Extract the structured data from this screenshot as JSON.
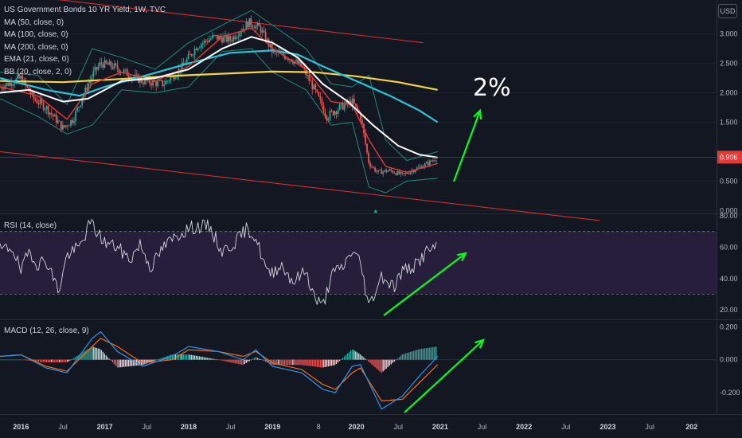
{
  "header": {
    "title": "US Government Bonds 10 YR Yield, 1W, TVC",
    "currency": "USD"
  },
  "indicators": {
    "ma50": "MA (50, close, 0)",
    "ma100": "MA (100, close, 0)",
    "ma200": "MA (200, close, 0)",
    "ema21": "EMA (21, close, 0)",
    "bb": "BB (20, close, 2, 0)",
    "rsi": "RSI (14, close)",
    "macd": "MACD (12, 26, close, 9)"
  },
  "annotation": {
    "text": "2%"
  },
  "colors": {
    "background": "#131722",
    "up": "#26a69a",
    "down": "#ef5350",
    "ma50": "#ffffff",
    "ma100": "#26c6da",
    "ma200": "#f5d442",
    "ema21": "#e53935",
    "bb": "#1d8a7a",
    "rsi_band": "#2a2040",
    "rsi_line": "#d1d4dc",
    "macd": "#2196f3",
    "signal": "#ff6d00",
    "arrow": "#00ff1a",
    "trendline": "#d32f2f",
    "price_tag": "#e53935"
  },
  "chart_data": [
    {
      "type": "candlestick",
      "title": "US Government Bonds 10 YR Yield, 1W, TVC",
      "x_tick_labels": [
        "2016",
        "Jul",
        "2017",
        "Jul",
        "2018",
        "Jul",
        "2019",
        "8",
        "2020",
        "Jul",
        "2021",
        "Jul",
        "2022",
        "Jul",
        "2023",
        "Jul",
        "202"
      ],
      "y_tick_labels": [
        "3.000",
        "2.500",
        "2.000",
        "1.500",
        "0.906",
        "0.500",
        "0.000"
      ],
      "ylim": [
        -0.05,
        3.55
      ],
      "last_price": 0.906,
      "ohlc_x_start": 2015.75,
      "ohlc_x_step": 0.0192,
      "close_path": [
        [
          2015.75,
          2.1
        ],
        [
          2016.0,
          2.25
        ],
        [
          2016.15,
          1.9
        ],
        [
          2016.3,
          1.75
        ],
        [
          2016.5,
          1.4
        ],
        [
          2016.62,
          1.55
        ],
        [
          2016.85,
          2.3
        ],
        [
          2016.95,
          2.5
        ],
        [
          2017.1,
          2.45
        ],
        [
          2017.3,
          2.3
        ],
        [
          2017.45,
          2.2
        ],
        [
          2017.7,
          2.15
        ],
        [
          2017.9,
          2.4
        ],
        [
          2018.1,
          2.8
        ],
        [
          2018.3,
          2.95
        ],
        [
          2018.5,
          2.9
        ],
        [
          2018.72,
          3.2
        ],
        [
          2018.85,
          3.1
        ],
        [
          2019.0,
          2.7
        ],
        [
          2019.2,
          2.6
        ],
        [
          2019.35,
          2.45
        ],
        [
          2019.5,
          2.05
        ],
        [
          2019.65,
          1.6
        ],
        [
          2019.8,
          1.75
        ],
        [
          2019.95,
          1.85
        ],
        [
          2020.05,
          1.6
        ],
        [
          2020.15,
          0.8
        ],
        [
          2020.25,
          0.65
        ],
        [
          2020.4,
          0.68
        ],
        [
          2020.55,
          0.6
        ],
        [
          2020.7,
          0.7
        ],
        [
          2020.85,
          0.8
        ],
        [
          2020.97,
          0.906
        ]
      ],
      "ma50": [
        [
          2015.75,
          2.0
        ],
        [
          2016.1,
          2.05
        ],
        [
          2016.5,
          1.85
        ],
        [
          2016.8,
          1.9
        ],
        [
          2017.2,
          2.2
        ],
        [
          2017.6,
          2.25
        ],
        [
          2018.0,
          2.4
        ],
        [
          2018.4,
          2.75
        ],
        [
          2018.75,
          2.95
        ],
        [
          2019.0,
          2.85
        ],
        [
          2019.3,
          2.6
        ],
        [
          2019.6,
          2.15
        ],
        [
          2019.9,
          1.85
        ],
        [
          2020.2,
          1.45
        ],
        [
          2020.5,
          1.1
        ],
        [
          2020.75,
          0.95
        ],
        [
          2020.97,
          0.9
        ]
      ],
      "ma100": [
        [
          2015.75,
          2.25
        ],
        [
          2016.3,
          2.05
        ],
        [
          2016.7,
          1.95
        ],
        [
          2017.0,
          2.1
        ],
        [
          2017.5,
          2.3
        ],
        [
          2018.0,
          2.5
        ],
        [
          2018.5,
          2.68
        ],
        [
          2019.0,
          2.72
        ],
        [
          2019.3,
          2.65
        ],
        [
          2019.6,
          2.45
        ],
        [
          2020.0,
          2.2
        ],
        [
          2020.4,
          1.95
        ],
        [
          2020.75,
          1.7
        ],
        [
          2020.97,
          1.5
        ]
      ],
      "ma200": [
        [
          2015.75,
          2.2
        ],
        [
          2016.5,
          2.18
        ],
        [
          2017.0,
          2.22
        ],
        [
          2017.5,
          2.26
        ],
        [
          2018.0,
          2.3
        ],
        [
          2018.5,
          2.33
        ],
        [
          2019.0,
          2.36
        ],
        [
          2019.5,
          2.35
        ],
        [
          2020.0,
          2.28
        ],
        [
          2020.5,
          2.18
        ],
        [
          2020.97,
          2.05
        ]
      ],
      "ema21": [
        [
          2015.75,
          2.1
        ],
        [
          2016.2,
          1.95
        ],
        [
          2016.55,
          1.55
        ],
        [
          2016.85,
          2.15
        ],
        [
          2017.2,
          2.35
        ],
        [
          2017.6,
          2.2
        ],
        [
          2018.0,
          2.45
        ],
        [
          2018.4,
          2.95
        ],
        [
          2018.75,
          3.1
        ],
        [
          2019.0,
          2.75
        ],
        [
          2019.4,
          2.4
        ],
        [
          2019.7,
          1.85
        ],
        [
          2019.95,
          1.8
        ],
        [
          2020.15,
          1.2
        ],
        [
          2020.35,
          0.75
        ],
        [
          2020.6,
          0.65
        ],
        [
          2020.97,
          0.8
        ]
      ],
      "bb_upper": [
        [
          2015.75,
          2.35
        ],
        [
          2016.2,
          2.3
        ],
        [
          2016.55,
          1.8
        ],
        [
          2016.85,
          2.75
        ],
        [
          2017.2,
          2.6
        ],
        [
          2017.6,
          2.4
        ],
        [
          2018.0,
          2.85
        ],
        [
          2018.4,
          3.15
        ],
        [
          2018.75,
          3.4
        ],
        [
          2019.0,
          3.15
        ],
        [
          2019.4,
          2.75
        ],
        [
          2019.7,
          2.15
        ],
        [
          2019.95,
          2.1
        ],
        [
          2020.15,
          2.3
        ],
        [
          2020.35,
          1.2
        ],
        [
          2020.6,
          0.85
        ],
        [
          2020.97,
          1.0
        ]
      ],
      "bb_lower": [
        [
          2015.75,
          1.9
        ],
        [
          2016.2,
          1.6
        ],
        [
          2016.55,
          1.3
        ],
        [
          2016.85,
          1.45
        ],
        [
          2017.2,
          2.05
        ],
        [
          2017.6,
          2.0
        ],
        [
          2018.0,
          2.1
        ],
        [
          2018.4,
          2.7
        ],
        [
          2018.75,
          2.75
        ],
        [
          2019.0,
          2.35
        ],
        [
          2019.4,
          2.05
        ],
        [
          2019.7,
          1.45
        ],
        [
          2019.95,
          1.5
        ],
        [
          2020.15,
          0.4
        ],
        [
          2020.35,
          0.3
        ],
        [
          2020.6,
          0.5
        ],
        [
          2020.97,
          0.55
        ]
      ],
      "trendlines": [
        [
          [
            2015.75,
            3.7
          ],
          [
            2020.8,
            2.85
          ]
        ],
        [
          [
            2015.75,
            1.0
          ],
          [
            2022.9,
            -0.17
          ]
        ]
      ]
    },
    {
      "type": "line",
      "title": "RSI (14, close)",
      "y_tick_labels": [
        "80.00",
        "60.00",
        "40.00",
        "20.00"
      ],
      "ylim": [
        14,
        81
      ],
      "band": [
        30,
        70
      ],
      "series": [
        {
          "name": "RSI (14, close)",
          "values": [
            [
              2015.75,
              58
            ],
            [
              2015.9,
              60
            ],
            [
              2016.0,
              44
            ],
            [
              2016.1,
              58
            ],
            [
              2016.2,
              49
            ],
            [
              2016.3,
              52
            ],
            [
              2016.45,
              32
            ],
            [
              2016.55,
              55
            ],
            [
              2016.7,
              60
            ],
            [
              2016.83,
              76
            ],
            [
              2016.9,
              70
            ],
            [
              2017.0,
              63
            ],
            [
              2017.15,
              60
            ],
            [
              2017.3,
              52
            ],
            [
              2017.42,
              62
            ],
            [
              2017.55,
              47
            ],
            [
              2017.7,
              60
            ],
            [
              2017.85,
              67
            ],
            [
              2018.0,
              72
            ],
            [
              2018.1,
              73
            ],
            [
              2018.25,
              73
            ],
            [
              2018.4,
              57
            ],
            [
              2018.55,
              63
            ],
            [
              2018.7,
              72
            ],
            [
              2018.8,
              66
            ],
            [
              2018.95,
              42
            ],
            [
              2019.1,
              49
            ],
            [
              2019.25,
              38
            ],
            [
              2019.4,
              45
            ],
            [
              2019.5,
              28
            ],
            [
              2019.6,
              22
            ],
            [
              2019.7,
              42
            ],
            [
              2019.85,
              48
            ],
            [
              2019.95,
              58
            ],
            [
              2020.05,
              50
            ],
            [
              2020.15,
              22
            ],
            [
              2020.3,
              42
            ],
            [
              2020.45,
              35
            ],
            [
              2020.55,
              45
            ],
            [
              2020.7,
              48
            ],
            [
              2020.85,
              58
            ],
            [
              2020.97,
              60
            ]
          ]
        }
      ]
    },
    {
      "type": "line",
      "title": "MACD (12, 26, close, 9)",
      "y_tick_labels": [
        "0.200",
        "0.000",
        "-0.200"
      ],
      "ylim": [
        -0.33,
        0.24
      ],
      "series": [
        {
          "name": "MACD",
          "values": [
            [
              2015.75,
              0.02
            ],
            [
              2016.0,
              0.03
            ],
            [
              2016.3,
              -0.05
            ],
            [
              2016.55,
              -0.08
            ],
            [
              2016.85,
              0.13
            ],
            [
              2016.95,
              0.17
            ],
            [
              2017.15,
              0.05
            ],
            [
              2017.45,
              -0.04
            ],
            [
              2017.8,
              0.02
            ],
            [
              2018.0,
              0.08
            ],
            [
              2018.35,
              0.05
            ],
            [
              2018.65,
              0.0
            ],
            [
              2018.8,
              0.06
            ],
            [
              2019.0,
              -0.04
            ],
            [
              2019.35,
              -0.08
            ],
            [
              2019.6,
              -0.18
            ],
            [
              2019.75,
              -0.2
            ],
            [
              2019.95,
              -0.04
            ],
            [
              2020.05,
              -0.03
            ],
            [
              2020.3,
              -0.3
            ],
            [
              2020.55,
              -0.22
            ],
            [
              2020.75,
              -0.1
            ],
            [
              2020.97,
              0.02
            ]
          ]
        },
        {
          "name": "Signal",
          "values": [
            [
              2015.75,
              0.02
            ],
            [
              2016.0,
              0.03
            ],
            [
              2016.3,
              -0.04
            ],
            [
              2016.55,
              -0.07
            ],
            [
              2016.85,
              0.08
            ],
            [
              2016.95,
              0.13
            ],
            [
              2017.15,
              0.08
            ],
            [
              2017.45,
              -0.02
            ],
            [
              2017.8,
              0.0
            ],
            [
              2018.0,
              0.06
            ],
            [
              2018.35,
              0.05
            ],
            [
              2018.65,
              0.02
            ],
            [
              2018.8,
              0.05
            ],
            [
              2019.0,
              -0.02
            ],
            [
              2019.35,
              -0.06
            ],
            [
              2019.6,
              -0.15
            ],
            [
              2019.75,
              -0.18
            ],
            [
              2019.95,
              -0.08
            ],
            [
              2020.05,
              -0.05
            ],
            [
              2020.3,
              -0.25
            ],
            [
              2020.55,
              -0.24
            ],
            [
              2020.75,
              -0.14
            ],
            [
              2020.97,
              -0.03
            ]
          ]
        }
      ]
    }
  ]
}
